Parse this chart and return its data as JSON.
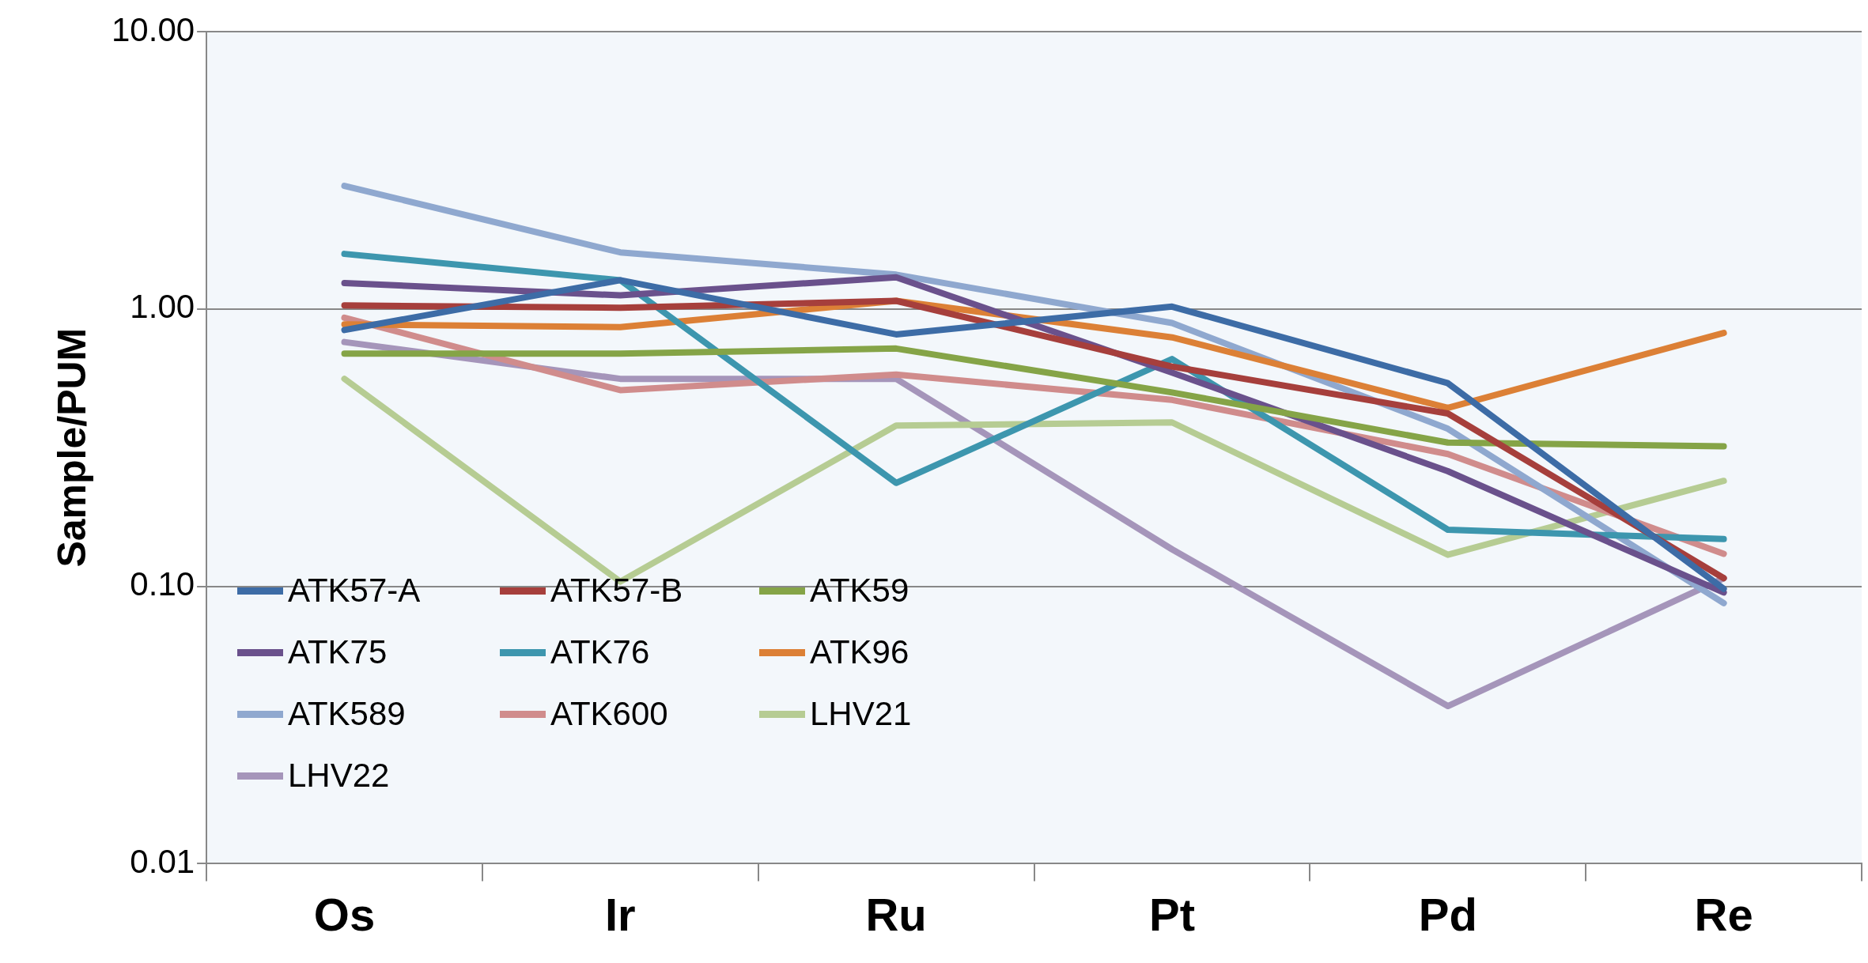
{
  "chart_data": {
    "type": "line",
    "ylabel": "Sample/PUM",
    "log": "y",
    "grid": "y",
    "legend": "bottom left",
    "marker": "none",
    "line_style": "solid",
    "categories": [
      "Os",
      "Ir",
      "Ru",
      "Pt",
      "Pd",
      "Re"
    ],
    "ylim": [
      0.01,
      10
    ],
    "yticks": [
      {
        "value": 0.01,
        "label": "0.01"
      },
      {
        "value": 0.1,
        "label": "0.10"
      },
      {
        "value": 1,
        "label": "1.00"
      },
      {
        "value": 10,
        "label": "10.00"
      }
    ],
    "series": [
      {
        "name": "ATK57-A",
        "color": "#3d6ca6",
        "values": [
          0.84,
          1.27,
          0.81,
          1.02,
          0.54,
          0.098
        ]
      },
      {
        "name": "ATK57-B",
        "color": "#a63f3c",
        "values": [
          1.03,
          1.01,
          1.07,
          0.62,
          0.42,
          0.107
        ]
      },
      {
        "name": "ATK59",
        "color": "#85a447",
        "values": [
          0.69,
          0.69,
          0.72,
          0.5,
          0.33,
          0.32
        ]
      },
      {
        "name": "ATK75",
        "color": "#6a518c",
        "values": [
          1.24,
          1.12,
          1.3,
          0.59,
          0.26,
          0.095
        ]
      },
      {
        "name": "ATK76",
        "color": "#3d96ae",
        "values": [
          1.58,
          1.27,
          0.236,
          0.66,
          0.16,
          0.148
        ]
      },
      {
        "name": "ATK96",
        "color": "#dc8036",
        "values": [
          0.88,
          0.86,
          1.07,
          0.79,
          0.44,
          0.82
        ]
      },
      {
        "name": "ATK589",
        "color": "#8fa8cf",
        "values": [
          2.78,
          1.6,
          1.33,
          0.89,
          0.37,
          0.087
        ]
      },
      {
        "name": "ATK600",
        "color": "#d08c8c",
        "values": [
          0.93,
          0.51,
          0.58,
          0.47,
          0.3,
          0.131
        ]
      },
      {
        "name": "LHV21",
        "color": "#b6cc93",
        "values": [
          0.56,
          0.104,
          0.38,
          0.39,
          0.13,
          0.24
        ]
      },
      {
        "name": "LHV22",
        "color": "#a595ba",
        "values": [
          0.76,
          0.56,
          0.56,
          0.136,
          0.037,
          0.107
        ]
      }
    ]
  }
}
